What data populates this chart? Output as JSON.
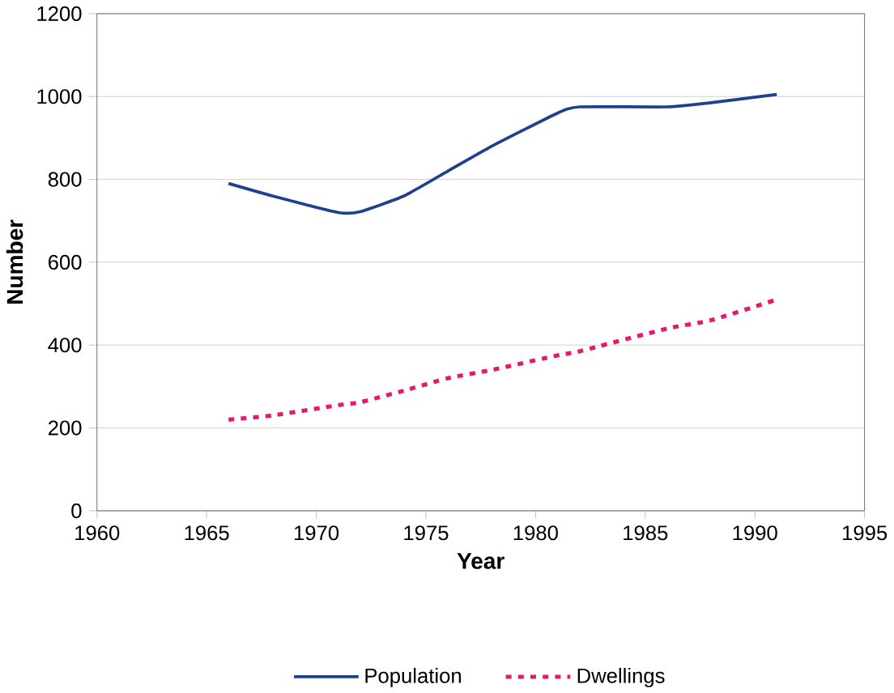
{
  "chart_data": {
    "type": "line",
    "xlabel": "Year",
    "ylabel": "Number",
    "x": [
      1966,
      1968,
      1971,
      1972,
      1974,
      1976,
      1978,
      1981,
      1982,
      1986,
      1988,
      1991
    ],
    "series": [
      {
        "name": "Population",
        "color": "#1f3f8f",
        "line_style": "solid",
        "values": [
          790,
          760,
          720,
          722,
          760,
          820,
          880,
          960,
          975,
          975,
          985,
          1005
        ]
      },
      {
        "name": "Dwellings",
        "color": "#e8186d",
        "line_style": "dotted",
        "values": [
          220,
          230,
          255,
          262,
          290,
          320,
          340,
          375,
          385,
          440,
          460,
          510
        ]
      }
    ],
    "xlim": [
      1960,
      1995
    ],
    "xticks": [
      1960,
      1965,
      1970,
      1975,
      1980,
      1985,
      1990,
      1995
    ],
    "ylim": [
      0,
      1200
    ],
    "yticks": [
      0,
      200,
      400,
      600,
      800,
      1000,
      1200
    ],
    "grid": "y",
    "legend": "bottom",
    "marker": "none"
  }
}
